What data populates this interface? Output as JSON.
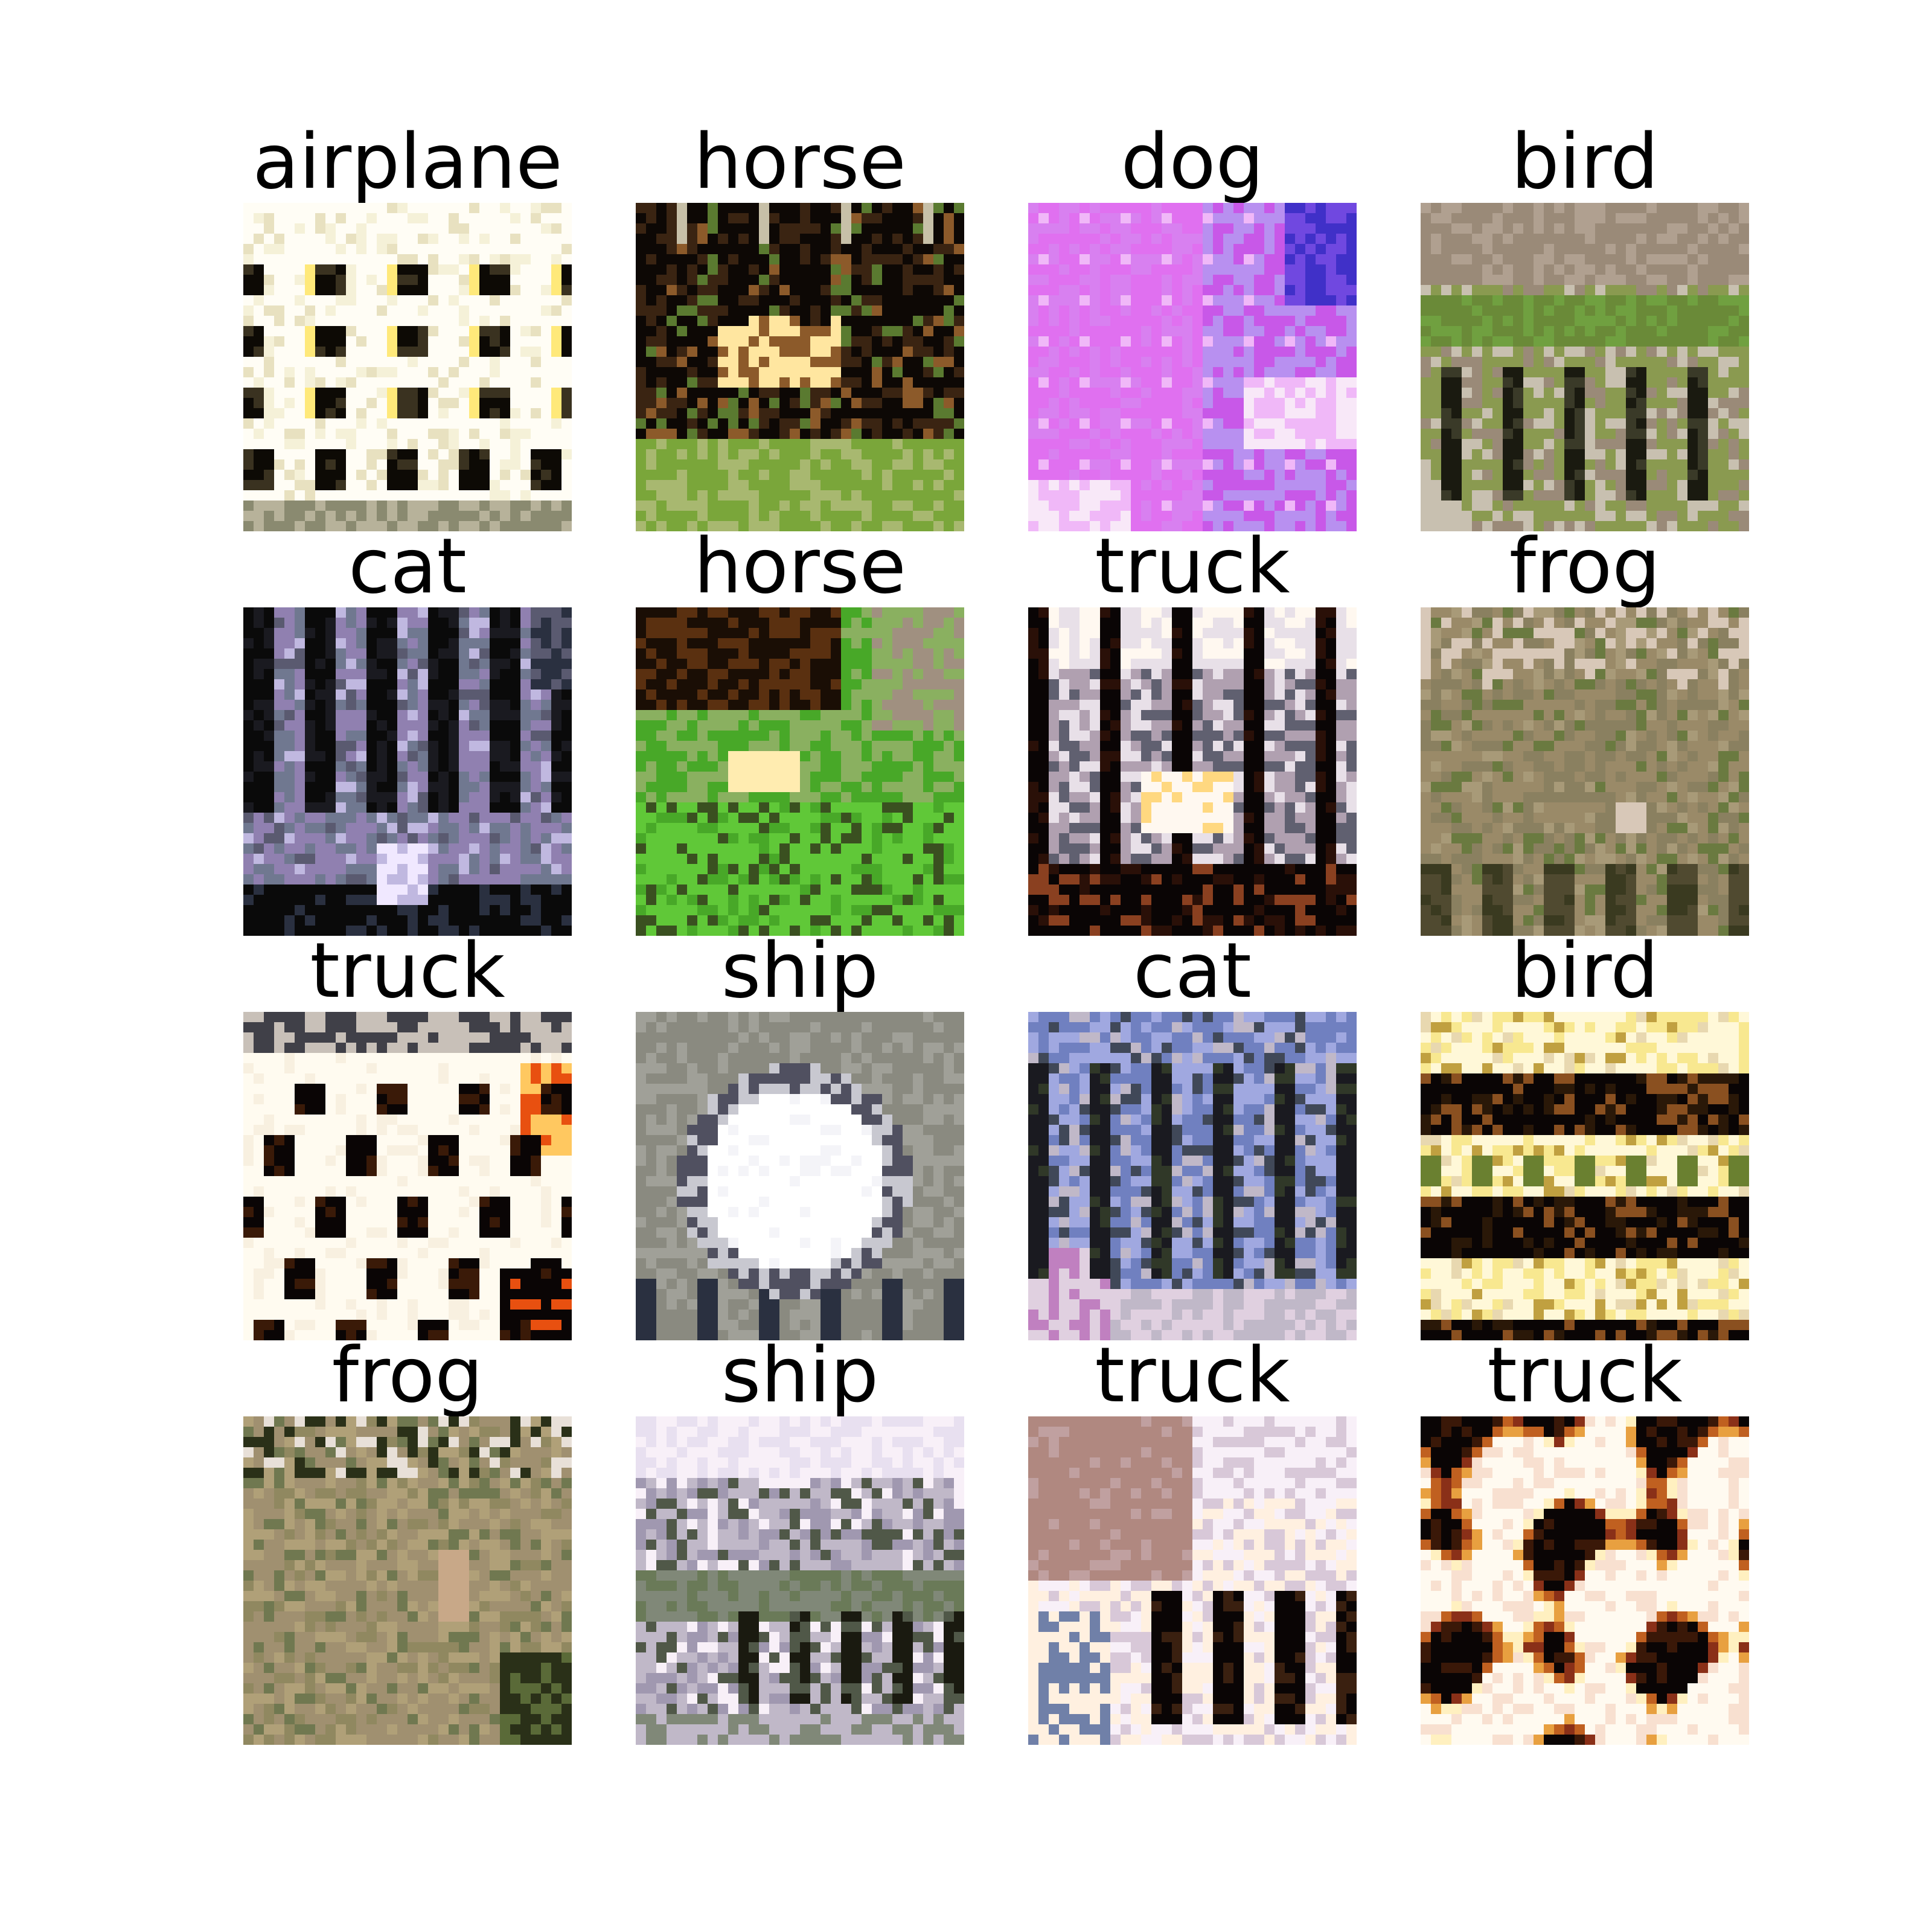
{
  "figure": {
    "samples": [
      {
        "label": "airplane",
        "palette": [
          "#fffdf5",
          "#f5f1d8",
          "#e8e1c0",
          "#3a3220",
          "#0d0a05",
          "#b7b29a",
          "#8a8a70",
          "#ffe97a"
        ],
        "pattern": "airplane"
      },
      {
        "label": "horse",
        "palette": [
          "#0d0805",
          "#3a2412",
          "#8c5a2a",
          "#ffe6a0",
          "#7aa63a",
          "#5a7a30",
          "#c7c0a8",
          "#a8b870"
        ],
        "pattern": "horse1"
      },
      {
        "label": "dog",
        "palette": [
          "#e070f0",
          "#c858e8",
          "#f0b8f8",
          "#7048e0",
          "#4030c8",
          "#f8e8f8",
          "#b890f0",
          "#d880f0"
        ],
        "pattern": "dog"
      },
      {
        "label": "bird",
        "palette": [
          "#9a8a78",
          "#8a9a50",
          "#6a8a38",
          "#3a3a28",
          "#1a1a10",
          "#c8c0b0",
          "#70a040",
          "#b0a090"
        ],
        "pattern": "bird1"
      },
      {
        "label": "cat",
        "palette": [
          "#0a0a0a",
          "#1a1a20",
          "#5a5a70",
          "#9080b0",
          "#c0b8e0",
          "#f0e8ff",
          "#2a3040",
          "#707890"
        ],
        "pattern": "cat1"
      },
      {
        "label": "horse",
        "palette": [
          "#1a0e05",
          "#5a3010",
          "#ffecb0",
          "#60c838",
          "#48a828",
          "#8ab060",
          "#a09080",
          "#3a5020"
        ],
        "pattern": "horse2"
      },
      {
        "label": "truck",
        "palette": [
          "#0a0505",
          "#2a1008",
          "#fff8f0",
          "#e8e0e8",
          "#b0a0b0",
          "#8a4020",
          "#ffd880",
          "#606070"
        ],
        "pattern": "truck1"
      },
      {
        "label": "frog",
        "palette": [
          "#9a8a68",
          "#8a8060",
          "#a89a78",
          "#504a30",
          "#3a3a20",
          "#d8c8b8",
          "#6a7a40",
          "#b0a088"
        ],
        "pattern": "frog1"
      },
      {
        "label": "truck",
        "palette": [
          "#fffbf0",
          "#f8f0e0",
          "#0a0505",
          "#3a1a08",
          "#e85010",
          "#ffc860",
          "#404048",
          "#c8c0b8"
        ],
        "pattern": "truck2"
      },
      {
        "label": "ship",
        "palette": [
          "#8a8a80",
          "#a0a098",
          "#ffffff",
          "#f4f4f8",
          "#505060",
          "#2a3040",
          "#c8c8d0",
          "#e0a040"
        ],
        "pattern": "ship1"
      },
      {
        "label": "cat",
        "palette": [
          "#1a1a20",
          "#404858",
          "#7080c0",
          "#a0a8e0",
          "#c0b8c8",
          "#e0d0e0",
          "#303828",
          "#c080c0"
        ],
        "pattern": "cat2"
      },
      {
        "label": "bird",
        "palette": [
          "#fff8d8",
          "#f8e890",
          "#2a1808",
          "#0a0505",
          "#8a5020",
          "#c0a040",
          "#6a8030",
          "#e8d8b0"
        ],
        "pattern": "bird2"
      },
      {
        "label": "frog",
        "palette": [
          "#a09070",
          "#b0a078",
          "#908860",
          "#707850",
          "#2a3018",
          "#e8e0d8",
          "#c8a888",
          "#5a6a38"
        ],
        "pattern": "frog2"
      },
      {
        "label": "ship",
        "palette": [
          "#c0b8c8",
          "#e8e0f0",
          "#808878",
          "#505848",
          "#1a1a10",
          "#a098b0",
          "#f8f0f8",
          "#6a7a58"
        ],
        "pattern": "ship2"
      },
      {
        "label": "truck",
        "palette": [
          "#b08880",
          "#f8f0f8",
          "#0a0505",
          "#3a2010",
          "#fff0e0",
          "#7080a8",
          "#c0a0a0",
          "#d8c8d8"
        ],
        "pattern": "truck3"
      },
      {
        "label": "truck",
        "palette": [
          "#fffaf0",
          "#0a0505",
          "#3a1808",
          "#e8a040",
          "#fff0c0",
          "#8a3018",
          "#f8e0d0",
          "#c06020"
        ],
        "pattern": "truck4"
      }
    ]
  }
}
